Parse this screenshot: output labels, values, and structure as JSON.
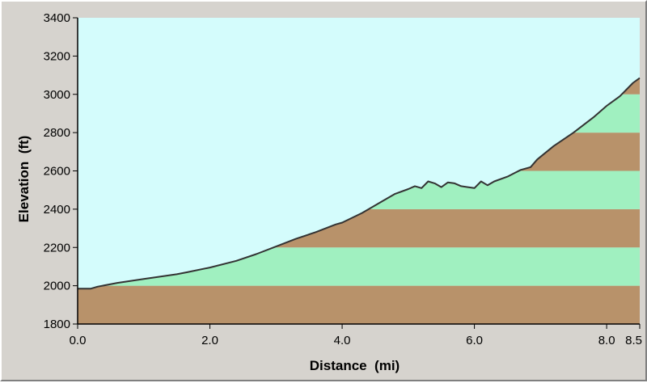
{
  "chart_data": {
    "type": "area",
    "xlabel": "Distance  (mi)",
    "ylabel": "Elevation  (ft)",
    "xlim": [
      0,
      8.5
    ],
    "ylim": [
      1800,
      3400
    ],
    "x_ticks": [
      {
        "value": 0,
        "label": "0.0"
      },
      {
        "value": 2,
        "label": "2.0"
      },
      {
        "value": 4,
        "label": "4.0"
      },
      {
        "value": 6,
        "label": "6.0"
      },
      {
        "value": 8,
        "label": "8.0"
      },
      {
        "value": 8.5,
        "label": "8.5"
      }
    ],
    "y_ticks": [
      {
        "value": 1800,
        "label": "1800"
      },
      {
        "value": 2000,
        "label": "2000"
      },
      {
        "value": 2200,
        "label": "2200"
      },
      {
        "value": 2400,
        "label": "2400"
      },
      {
        "value": 2600,
        "label": "2600"
      },
      {
        "value": 2800,
        "label": "2800"
      },
      {
        "value": 3000,
        "label": "3000"
      },
      {
        "value": 3200,
        "label": "3200"
      },
      {
        "value": 3400,
        "label": "3400"
      }
    ],
    "elevation_band_size_ft": 200,
    "series": [
      {
        "x": [
          0,
          0.2,
          0.3,
          0.6,
          1.0,
          1.5,
          1.65,
          2.0,
          2.4,
          2.7,
          3.0,
          3.3,
          3.6,
          3.9,
          4.0,
          4.3,
          4.6,
          4.8,
          5.0,
          5.1,
          5.2,
          5.3,
          5.4,
          5.5,
          5.6,
          5.7,
          5.8,
          5.9,
          6.0,
          6.1,
          6.2,
          6.3,
          6.5,
          6.7,
          6.85,
          6.95,
          7.2,
          7.5,
          7.8,
          8.0,
          8.2,
          8.4,
          8.5
        ],
        "y": [
          1985,
          1985,
          1995,
          2015,
          2035,
          2060,
          2070,
          2095,
          2130,
          2165,
          2205,
          2245,
          2280,
          2320,
          2330,
          2380,
          2440,
          2480,
          2505,
          2520,
          2510,
          2545,
          2535,
          2515,
          2540,
          2535,
          2520,
          2515,
          2510,
          2545,
          2525,
          2545,
          2570,
          2605,
          2620,
          2660,
          2730,
          2800,
          2880,
          2940,
          2990,
          3060,
          3085
        ]
      }
    ],
    "colors": {
      "sky": "#d4fcfc",
      "band_brown": "#b8926a",
      "band_green": "#a0f0c0",
      "profile_line": "#333333",
      "frame": "#d6d3ce"
    },
    "grid": false
  }
}
